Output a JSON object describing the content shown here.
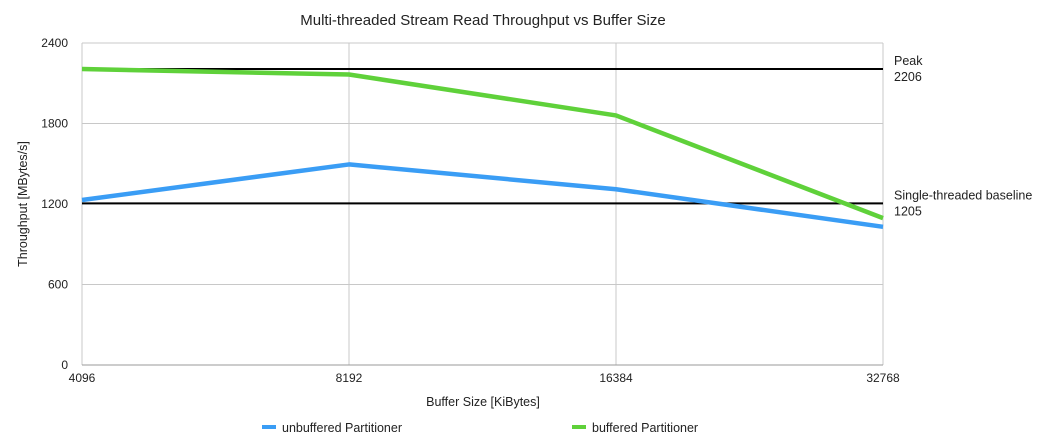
{
  "chart_data": {
    "type": "line",
    "title": "Multi-threaded Stream Read Throughput vs Buffer Size",
    "xlabel": "Buffer Size [KiBytes]",
    "ylabel": "Throughput [MBytes/s]",
    "categories": [
      "4096",
      "8192",
      "16384",
      "32768"
    ],
    "ylim": [
      0,
      2400
    ],
    "yticks": [
      "0",
      "600",
      "1200",
      "1800",
      "2400"
    ],
    "grid": true,
    "legend_position": "bottom",
    "series": [
      {
        "name": "unbuffered Partitioner",
        "color": "#3a9df5",
        "values": [
          1230,
          1495,
          1310,
          1030
        ]
      },
      {
        "name": "buffered Partitioner",
        "color": "#5fd13a",
        "values": [
          2206,
          2165,
          1860,
          1095
        ]
      }
    ],
    "reference_lines": [
      {
        "label": "Peak",
        "value_label": "2206",
        "value": 2206,
        "color": "#000000"
      },
      {
        "label": "Single-threaded baseline",
        "value_label": "1205",
        "value": 1205,
        "color": "#000000"
      }
    ]
  }
}
